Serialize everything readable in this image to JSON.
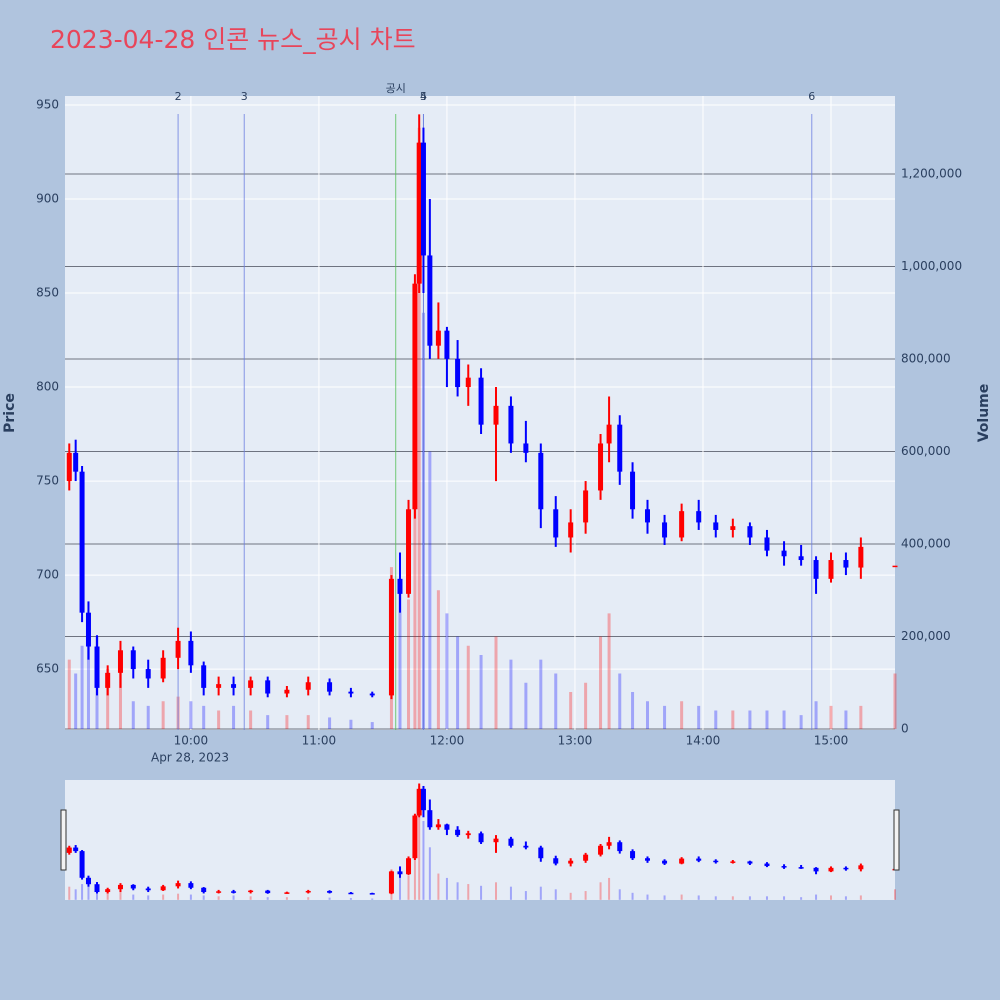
{
  "chart_data": {
    "type": "candlestick",
    "title": "2023-04-28 인콘 뉴스_공시 차트",
    "y_label": "Price",
    "y2_label": "Volume",
    "x_date_label": "Apr 28, 2023",
    "increasing_color": "#ff0000",
    "decreasing_color": "#0000ff",
    "x": [
      "2023-04-28 09:03",
      "2023-04-28 09:06",
      "2023-04-28 09:09",
      "2023-04-28 09:12",
      "2023-04-28 09:16",
      "2023-04-28 09:21",
      "2023-04-28 09:27",
      "2023-04-28 09:33",
      "2023-04-28 09:40",
      "2023-04-28 09:47",
      "2023-04-28 09:54",
      "2023-04-28 10:00",
      "2023-04-28 10:06",
      "2023-04-28 10:13",
      "2023-04-28 10:20",
      "2023-04-28 10:28",
      "2023-04-28 10:36",
      "2023-04-28 10:45",
      "2023-04-28 10:55",
      "2023-04-28 11:05",
      "2023-04-28 11:15",
      "2023-04-28 11:25",
      "2023-04-28 11:34",
      "2023-04-28 11:38",
      "2023-04-28 11:42",
      "2023-04-28 11:45",
      "2023-04-28 11:47",
      "2023-04-28 11:49",
      "2023-04-28 11:52",
      "2023-04-28 11:56",
      "2023-04-28 12:00",
      "2023-04-28 12:05",
      "2023-04-28 12:10",
      "2023-04-28 12:16",
      "2023-04-28 12:23",
      "2023-04-28 12:30",
      "2023-04-28 12:37",
      "2023-04-28 12:44",
      "2023-04-28 12:51",
      "2023-04-28 12:58",
      "2023-04-28 13:05",
      "2023-04-28 13:12",
      "2023-04-28 13:16",
      "2023-04-28 13:21",
      "2023-04-28 13:27",
      "2023-04-28 13:34",
      "2023-04-28 13:42",
      "2023-04-28 13:50",
      "2023-04-28 13:58",
      "2023-04-28 14:06",
      "2023-04-28 14:14",
      "2023-04-28 14:22",
      "2023-04-28 14:30",
      "2023-04-28 14:38",
      "2023-04-28 14:46",
      "2023-04-28 14:53",
      "2023-04-28 15:00",
      "2023-04-28 15:07",
      "2023-04-28 15:14",
      "2023-04-28 15:30"
    ],
    "open": [
      750,
      765,
      755,
      680,
      662,
      640,
      648,
      660,
      650,
      645,
      656,
      665,
      652,
      640,
      642,
      640,
      644,
      637,
      639,
      643,
      638,
      637,
      636,
      698,
      690,
      735,
      855,
      930,
      870,
      822,
      830,
      815,
      800,
      805,
      780,
      790,
      770,
      765,
      735,
      720,
      728,
      745,
      770,
      780,
      755,
      735,
      728,
      720,
      734,
      728,
      724,
      726,
      720,
      713,
      710,
      708,
      698,
      708,
      704,
      705
    ],
    "high": [
      770,
      772,
      758,
      686,
      668,
      652,
      665,
      662,
      655,
      660,
      672,
      670,
      654,
      646,
      646,
      646,
      646,
      641,
      646,
      645,
      640,
      638,
      700,
      712,
      740,
      860,
      945,
      938,
      900,
      845,
      832,
      825,
      812,
      810,
      800,
      795,
      782,
      770,
      742,
      735,
      750,
      775,
      795,
      785,
      760,
      740,
      732,
      738,
      740,
      732,
      730,
      728,
      724,
      718,
      716,
      710,
      712,
      712,
      720,
      705
    ],
    "low": [
      745,
      750,
      675,
      655,
      636,
      636,
      640,
      645,
      640,
      643,
      650,
      648,
      636,
      636,
      636,
      636,
      635,
      635,
      636,
      636,
      635,
      635,
      634,
      680,
      688,
      730,
      850,
      850,
      815,
      815,
      800,
      795,
      790,
      775,
      750,
      765,
      760,
      725,
      715,
      712,
      722,
      740,
      760,
      748,
      730,
      722,
      716,
      718,
      724,
      720,
      720,
      716,
      710,
      705,
      705,
      690,
      696,
      700,
      698,
      705
    ],
    "close": [
      765,
      755,
      680,
      662,
      640,
      648,
      660,
      650,
      645,
      656,
      665,
      652,
      640,
      642,
      640,
      644,
      637,
      639,
      643,
      638,
      637,
      636,
      698,
      690,
      735,
      855,
      930,
      870,
      822,
      830,
      815,
      800,
      805,
      780,
      790,
      770,
      765,
      735,
      720,
      728,
      745,
      770,
      780,
      755,
      735,
      728,
      720,
      734,
      728,
      724,
      726,
      720,
      713,
      710,
      708,
      698,
      708,
      704,
      715,
      705
    ],
    "volume": [
      150000,
      120000,
      180000,
      250000,
      200000,
      130000,
      140000,
      60000,
      50000,
      60000,
      70000,
      60000,
      50000,
      40000,
      50000,
      40000,
      30000,
      30000,
      30000,
      25000,
      20000,
      15000,
      350000,
      300000,
      280000,
      500000,
      1300000,
      900000,
      600000,
      300000,
      250000,
      200000,
      180000,
      160000,
      200000,
      150000,
      100000,
      150000,
      120000,
      80000,
      100000,
      200000,
      250000,
      120000,
      80000,
      60000,
      50000,
      60000,
      50000,
      40000,
      40000,
      40000,
      40000,
      40000,
      30000,
      60000,
      50000,
      40000,
      50000,
      120000
    ],
    "xlim": [
      "2023-04-28 09:01",
      "2023-04-28 15:30"
    ],
    "xticks": [
      {
        "value": "2023-04-28 10:00",
        "label": "10:00"
      },
      {
        "value": "2023-04-28 11:00",
        "label": "11:00"
      },
      {
        "value": "2023-04-28 12:00",
        "label": "12:00"
      },
      {
        "value": "2023-04-28 13:00",
        "label": "13:00"
      },
      {
        "value": "2023-04-28 14:00",
        "label": "14:00"
      },
      {
        "value": "2023-04-28 15:00",
        "label": "15:00"
      }
    ],
    "ylim": [
      617.6,
      954.8
    ],
    "yticks": [
      650,
      700,
      750,
      800,
      850,
      900,
      950
    ],
    "y2lim": [
      -2160,
      1368650
    ],
    "y2ticks": [
      0,
      {
        "value": 200000,
        "label": "200,000"
      },
      {
        "value": 400000,
        "label": "400,000"
      },
      {
        "value": 600000,
        "label": "600,000"
      },
      {
        "value": 800000,
        "label": "800,000"
      },
      {
        "value": 1000000,
        "label": "1,000,000"
      },
      {
        "value": 1200000,
        "label": "1,200,000"
      }
    ],
    "vlines": [
      {
        "x": "2023-04-28 09:54",
        "label": "2",
        "color": "#6b7fe0"
      },
      {
        "x": "2023-04-28 10:25",
        "label": "3",
        "color": "#6b7fe0"
      },
      {
        "x": "2023-04-28 11:36",
        "label": "공시",
        "color": "#55c055"
      },
      {
        "x": "2023-04-28 11:49",
        "label": "4",
        "color": "#6b7fe0"
      },
      {
        "x": "2023-04-28 11:49",
        "label": "5",
        "color": "#6b7fe0"
      },
      {
        "x": "2023-04-28 14:51",
        "label": "6",
        "color": "#6b7fe0"
      }
    ]
  }
}
